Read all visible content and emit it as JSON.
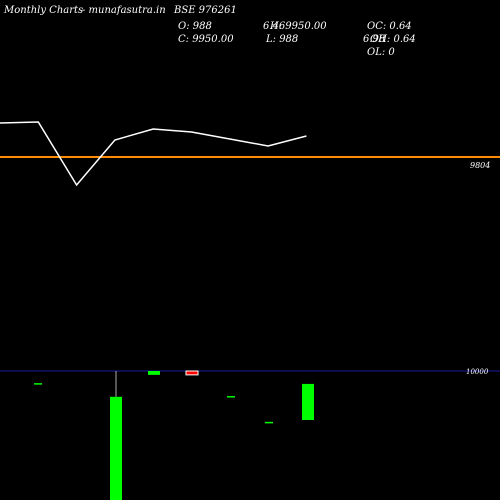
{
  "header": {
    "brand": "Monthly Charts",
    "source": "- munafasutra.in",
    "symbol": "BSE 976261",
    "open_text": "O: 988",
    "close_text": "C: 9950.00",
    "high_text": "H: 9950.00",
    "low_text": "L: 988",
    "overlap_top": "6.46",
    "overlap_bottom": "6.98",
    "oc_text": "OC: 0.64",
    "oh_text": "OH: 0.64",
    "ol_text": "OL: 0"
  },
  "chart_data": [
    {
      "type": "line",
      "title": "",
      "reference_line": {
        "value": 9804,
        "label": "9804",
        "color": "#ff8c00"
      },
      "series": [
        {
          "values": [
            34,
            35,
            -28,
            17,
            28,
            25,
            18,
            11,
            21
          ],
          "color": "#ffffff"
        }
      ],
      "ylim": [
        -90,
        60
      ]
    },
    {
      "type": "candlestick",
      "title": "",
      "reference_line": {
        "value": 10000,
        "label": "10000",
        "color": "#1a1aa0"
      },
      "candles": [
        {
          "open": 9500,
          "close": 9500,
          "high": 9500,
          "low": 9500,
          "color": "#00ff00"
        },
        {
          "open": 5000,
          "close": 9000,
          "high": 10000,
          "low": 5000,
          "color": "#00ff00"
        },
        {
          "open": 9850,
          "close": 10000,
          "high": 10000,
          "low": 9850,
          "color": "#00ff00"
        },
        {
          "open": 10000,
          "close": 9850,
          "high": 10000,
          "low": 9850,
          "color": "#ff0000"
        },
        {
          "open": 9000,
          "close": 9000,
          "high": 9000,
          "low": 9000,
          "color": "#00ff00"
        },
        {
          "open": 8000,
          "close": 8000,
          "high": 8000,
          "low": 8000,
          "color": "#00ff00"
        },
        {
          "open": 8100,
          "close": 9500,
          "high": 9500,
          "low": 8100,
          "color": "#00ff00"
        }
      ],
      "ylim": [
        5000,
        11000
      ]
    }
  ]
}
